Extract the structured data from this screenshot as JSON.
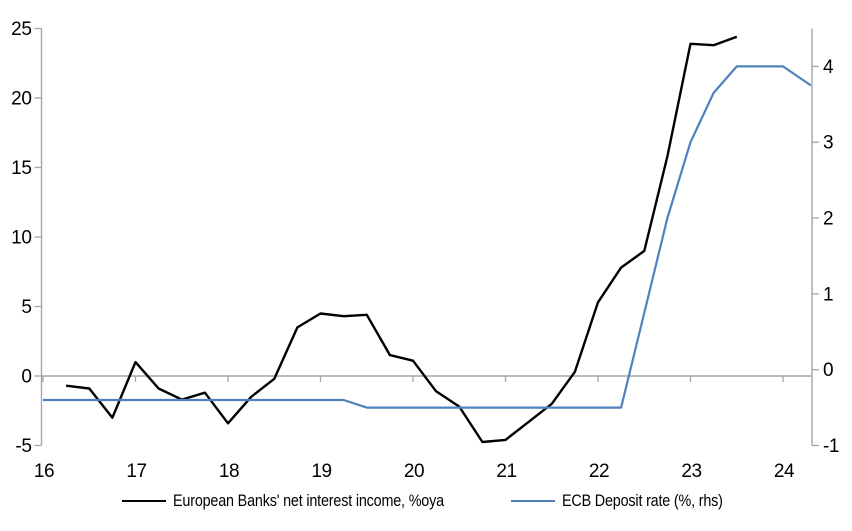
{
  "colors": {
    "background": "#ffffff",
    "axis": "#a6a6a6",
    "nii_line": "#000000",
    "deposit_rate_line": "#4f81bd",
    "label_text": "#000000"
  },
  "legend": {
    "items": [
      {
        "label": "European Banks' net interest income, %oya",
        "color": "#000000"
      },
      {
        "label": "ECB Deposit rate (%, rhs)",
        "color": "#4f81bd"
      }
    ]
  },
  "chart_data": {
    "type": "line",
    "title": "",
    "xlabel": "",
    "ylabel_left": "",
    "ylabel_right": "",
    "grid": "zero-line-only",
    "legend_position": "bottom",
    "x_axis": {
      "range": [
        16,
        24.35
      ],
      "ticks": [
        16,
        17,
        18,
        19,
        20,
        21,
        22,
        23,
        24
      ],
      "tick_labels": [
        "16",
        "17",
        "18",
        "19",
        "20",
        "21",
        "22",
        "23",
        "24"
      ]
    },
    "left_axis": {
      "range": [
        -5,
        25
      ],
      "ticks": [
        -5,
        0,
        5,
        10,
        15,
        20,
        25
      ],
      "tick_labels": [
        "-5",
        "0",
        "5",
        "10",
        "15",
        "20",
        "25"
      ]
    },
    "right_axis": {
      "range": [
        -1,
        4.5
      ],
      "ticks": [
        -1,
        0,
        1,
        2,
        3,
        4
      ],
      "tick_labels": [
        "-1",
        "0",
        "1",
        "2",
        "3",
        "4"
      ]
    },
    "series": [
      {
        "name": "European Banks' net interest income, %oya",
        "axis": "left",
        "color": "#000000",
        "stroke_width": 2.4,
        "x": [
          16.25,
          16.5,
          16.75,
          17.0,
          17.25,
          17.5,
          17.75,
          18.0,
          18.25,
          18.5,
          18.75,
          19.0,
          19.25,
          19.5,
          19.75,
          20.0,
          20.25,
          20.5,
          20.75,
          21.0,
          21.25,
          21.5,
          21.75,
          22.0,
          22.25,
          22.5,
          22.75,
          23.0,
          23.25,
          23.5
        ],
        "values": [
          -0.7,
          -0.9,
          -3.0,
          1.0,
          -0.9,
          -1.7,
          -1.2,
          -3.4,
          -1.5,
          -0.2,
          3.5,
          4.5,
          4.3,
          4.4,
          1.5,
          1.1,
          -1.1,
          -2.2,
          -4.75,
          -4.6,
          -3.3,
          -2.0,
          0.3,
          5.3,
          7.8,
          9.0,
          15.8,
          23.9,
          23.8,
          24.4
        ]
      },
      {
        "name": "ECB Deposit rate (%, rhs)",
        "axis": "right",
        "color": "#4f81bd",
        "stroke_width": 2.2,
        "x": [
          16.0,
          19.25,
          19.5,
          22.25,
          22.5,
          22.75,
          23.0,
          23.25,
          23.5,
          24.0,
          24.3
        ],
        "values": [
          -0.4,
          -0.4,
          -0.5,
          -0.5,
          0.75,
          2.0,
          3.0,
          3.65,
          4.0,
          4.0,
          3.75
        ]
      }
    ]
  }
}
